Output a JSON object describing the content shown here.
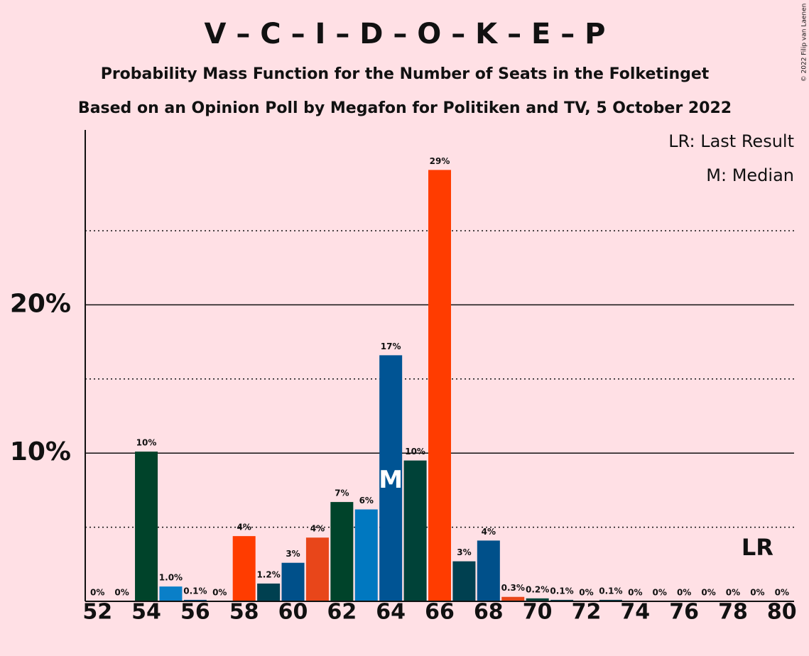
{
  "chart_data": {
    "type": "bar",
    "title": "V – C – I – D – O – K – E – P",
    "subtitle": "Probability Mass Function for the Number of Seats in the Folketinget",
    "subtitle2": "Based on an Opinion Poll by Megafon for Politiken and TV, 5 October 2022",
    "copyright": "© 2022 Filip van Laenen",
    "legend": [
      "LR: Last Result",
      "M: Median"
    ],
    "x": [
      52,
      53,
      54,
      55,
      56,
      57,
      58,
      59,
      60,
      61,
      62,
      63,
      64,
      65,
      66,
      67,
      68,
      69,
      70,
      71,
      72,
      73,
      74,
      75,
      76,
      77,
      78,
      79,
      80
    ],
    "values": [
      0,
      0,
      10.1,
      1.0,
      0.1,
      0,
      4.4,
      1.2,
      2.6,
      4.3,
      6.7,
      6.2,
      16.6,
      9.5,
      29.1,
      2.7,
      4.1,
      0.3,
      0.2,
      0.1,
      0,
      0.1,
      0,
      0,
      0,
      0,
      0,
      0,
      0
    ],
    "value_labels": [
      "0%",
      "0%",
      "10%",
      "1.0%",
      "0.1%",
      "0%",
      "4%",
      "1.2%",
      "3%",
      "4%",
      "7%",
      "6%",
      "17%",
      "10%",
      "29%",
      "3%",
      "4%",
      "0.3%",
      "0.2%",
      "0.1%",
      "0%",
      "0.1%",
      "0%",
      "0%",
      "0%",
      "0%",
      "0%",
      "0%",
      "0%"
    ],
    "colors": [
      "#00432a",
      "#00432a",
      "#00432a",
      "#0a7fc8",
      "#00508a",
      "#004050",
      "#ff3c00",
      "#004050",
      "#00508a",
      "#e8461a",
      "#00432a",
      "#0078c0",
      "#005494",
      "#004238",
      "#ff3c00",
      "#004050",
      "#00508a",
      "#e8461a",
      "#004238",
      "#004050",
      "#00508a",
      "#004050",
      "#00508a",
      "#004050",
      "#00508a",
      "#004050",
      "#00508a",
      "#004050",
      "#00508a"
    ],
    "xlim": [
      51.5,
      80.5
    ],
    "xticks": [
      52,
      54,
      56,
      58,
      60,
      62,
      64,
      66,
      68,
      70,
      72,
      74,
      76,
      78,
      80
    ],
    "ylim": [
      0,
      31.8
    ],
    "yticks": [
      {
        "value": 10,
        "label": "10%"
      },
      {
        "value": 20,
        "label": "20%"
      }
    ],
    "minor_yticks": [
      5,
      15,
      25
    ],
    "median": 64,
    "median_label": "M",
    "last_result": 79,
    "last_result_label": "LR"
  }
}
